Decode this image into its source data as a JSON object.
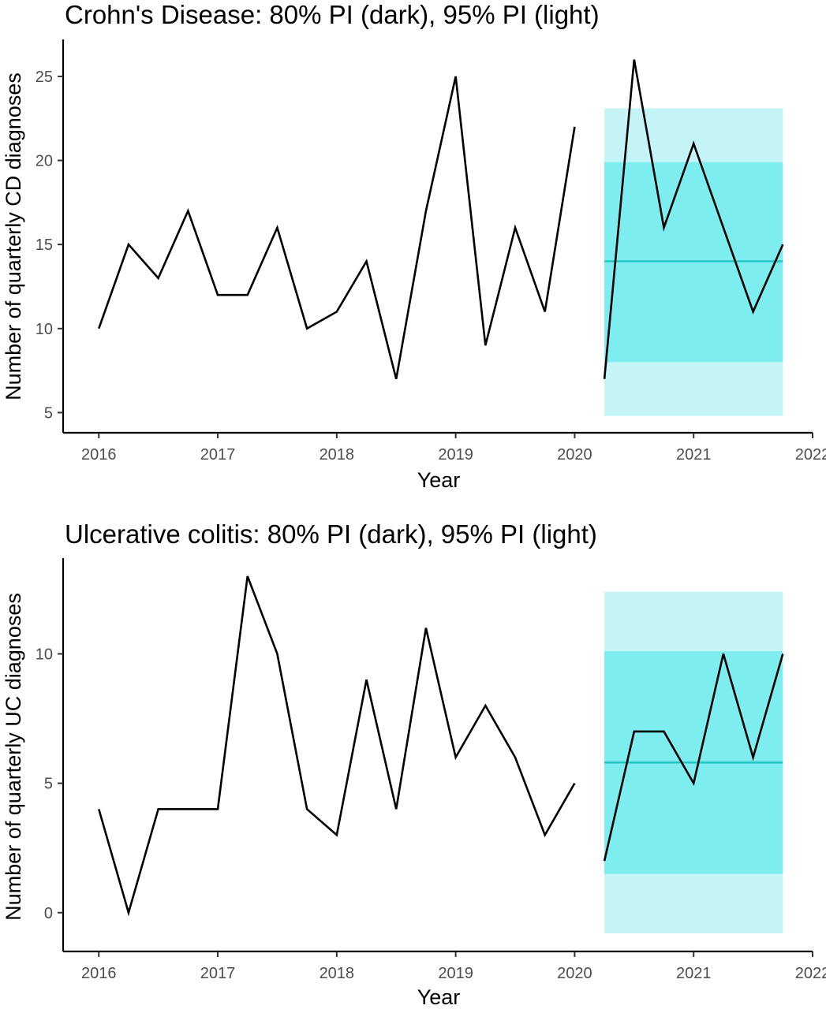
{
  "chart_data": [
    {
      "type": "line",
      "title": "Crohn's Disease: 80% PI (dark), 95% PI (light)",
      "xlabel": "Year",
      "ylabel": "Number of quarterly CD diagnoses",
      "xlim": [
        2015.7,
        2022.0
      ],
      "ylim": [
        3.8,
        27.2
      ],
      "x_ticks": [
        2016,
        2017,
        2018,
        2019,
        2020,
        2021,
        2022
      ],
      "x_tick_labels": [
        "2016",
        "2017",
        "2018",
        "2019",
        "2020",
        "2021",
        "2022"
      ],
      "y_ticks": [
        5,
        10,
        15,
        20,
        25
      ],
      "y_tick_labels": [
        "5",
        "10",
        "15",
        "20",
        "25"
      ],
      "grid": false,
      "series": [
        {
          "x": [
            2016.0,
            2016.25,
            2016.5,
            2016.75,
            2017.0,
            2017.25,
            2017.5,
            2017.75,
            2018.0,
            2018.25,
            2018.5,
            2018.75,
            2019.0,
            2019.25,
            2019.5,
            2019.75,
            2020.0
          ],
          "values": [
            10,
            15,
            13,
            17,
            12,
            12,
            16,
            10,
            11,
            14,
            7,
            17,
            25,
            9,
            16,
            11,
            22
          ]
        },
        {
          "x": [
            2020.25,
            2020.5,
            2020.75,
            2021.0,
            2021.25,
            2021.5,
            2021.75
          ],
          "values": [
            7,
            26,
            16,
            21,
            16,
            11,
            15
          ]
        }
      ],
      "forecast": {
        "x_range": [
          2020.25,
          2021.75
        ],
        "mean": 14,
        "pi80": [
          8,
          19.9
        ],
        "pi95": [
          4.8,
          23.1
        ]
      },
      "colors": {
        "line": "#000000",
        "mean": "#1fc4c4",
        "pi80": "#7eedef",
        "pi95": "#c4f4f5"
      }
    },
    {
      "type": "line",
      "title": "Ulcerative colitis: 80% PI (dark), 95% PI (light)",
      "xlabel": "Year",
      "ylabel": "Number of quarterly UC diagnoses",
      "xlim": [
        2015.7,
        2022.0
      ],
      "ylim": [
        -1.5,
        13.7
      ],
      "x_ticks": [
        2016,
        2017,
        2018,
        2019,
        2020,
        2021,
        2022
      ],
      "x_tick_labels": [
        "2016",
        "2017",
        "2018",
        "2019",
        "2020",
        "2021",
        "2022"
      ],
      "y_ticks": [
        0,
        5,
        10
      ],
      "y_tick_labels": [
        "0",
        "5",
        "10"
      ],
      "grid": false,
      "series": [
        {
          "x": [
            2016.0,
            2016.25,
            2016.5,
            2016.75,
            2017.0,
            2017.25,
            2017.5,
            2017.75,
            2018.0,
            2018.25,
            2018.5,
            2018.75,
            2019.0,
            2019.25,
            2019.5,
            2019.75,
            2020.0
          ],
          "values": [
            4,
            0,
            4,
            4,
            4,
            13,
            10,
            4,
            3,
            9,
            4,
            11,
            6,
            8,
            6,
            3,
            5
          ]
        },
        {
          "x": [
            2020.25,
            2020.5,
            2020.75,
            2021.0,
            2021.25,
            2021.5,
            2021.75
          ],
          "values": [
            2,
            7,
            7,
            5,
            10,
            6,
            10
          ]
        }
      ],
      "forecast": {
        "x_range": [
          2020.25,
          2021.75
        ],
        "mean": 5.8,
        "pi80": [
          1.5,
          10.1
        ],
        "pi95": [
          -0.8,
          12.4
        ]
      },
      "colors": {
        "line": "#000000",
        "mean": "#1fc4c4",
        "pi80": "#7eedef",
        "pi95": "#c4f4f5"
      }
    }
  ]
}
